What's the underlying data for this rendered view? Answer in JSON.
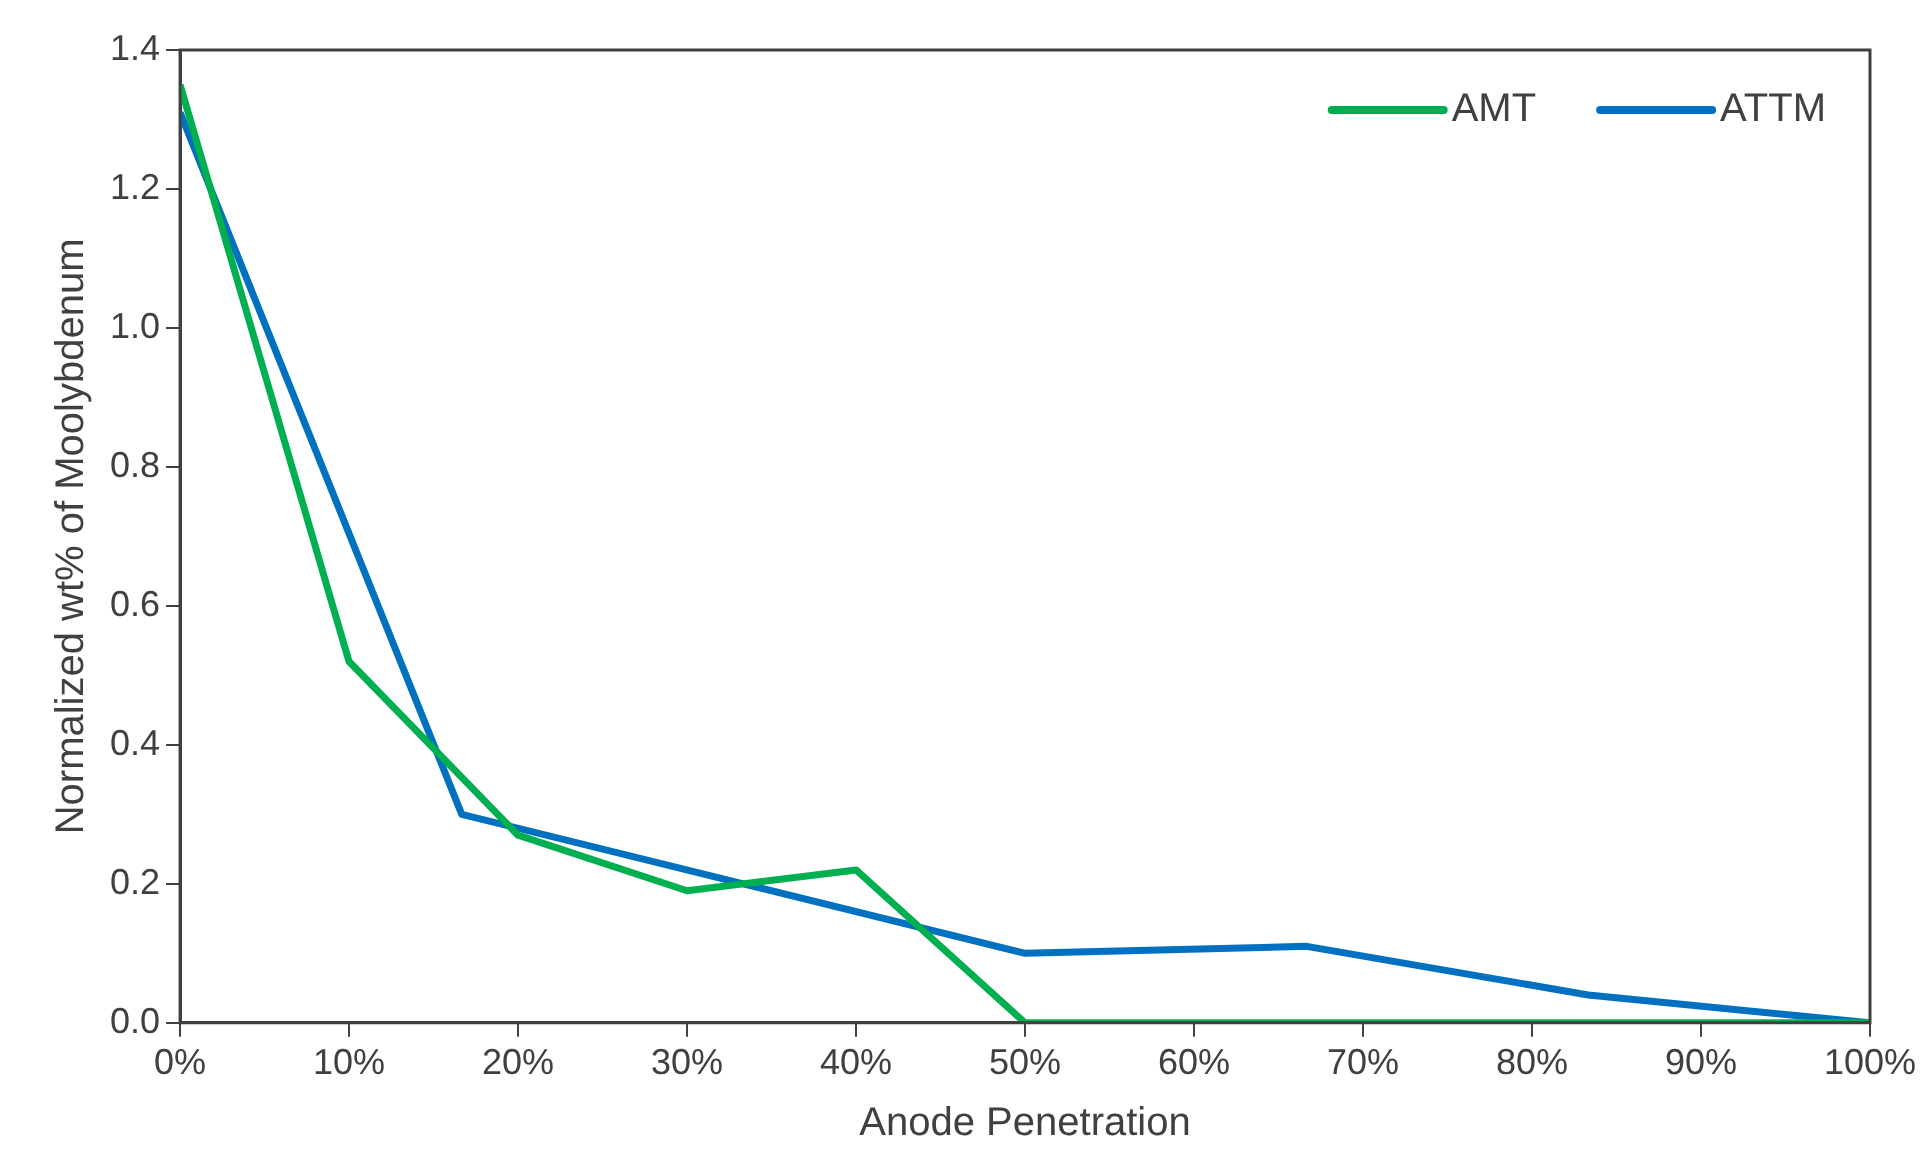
{
  "chart_data": {
    "type": "line",
    "xlabel": "Anode Penetration",
    "ylabel": "Normalized wt% of Moolybdenum",
    "series": [
      {
        "name": "AMT",
        "color": "#00b050",
        "x": [
          0,
          10,
          20,
          30,
          40,
          50,
          60,
          70,
          80,
          90,
          100
        ],
        "values": [
          1.35,
          0.52,
          0.27,
          0.19,
          0.22,
          0,
          0,
          0,
          0,
          0,
          0
        ]
      },
      {
        "name": "ATTM",
        "color": "#0070c0",
        "x": [
          0,
          16.67,
          33.33,
          50,
          66.67,
          83.33,
          100
        ],
        "values": [
          1.31,
          0.3,
          0.2,
          0.1,
          0.11,
          0.04,
          0
        ]
      }
    ],
    "xlim": [
      0,
      100
    ],
    "xticks": [
      {
        "value": 0,
        "label": "0%"
      },
      {
        "value": 10,
        "label": "10%"
      },
      {
        "value": 20,
        "label": "20%"
      },
      {
        "value": 30,
        "label": "30%"
      },
      {
        "value": 40,
        "label": "40%"
      },
      {
        "value": 50,
        "label": "50%"
      },
      {
        "value": 60,
        "label": "60%"
      },
      {
        "value": 70,
        "label": "70%"
      },
      {
        "value": 80,
        "label": "80%"
      },
      {
        "value": 90,
        "label": "90%"
      },
      {
        "value": 100,
        "label": "100%"
      }
    ],
    "ylim": [
      0,
      1.4
    ],
    "yticks": [
      {
        "value": 0,
        "label": "0.0"
      },
      {
        "value": 0.2,
        "label": "0.2"
      },
      {
        "value": 0.4,
        "label": "0.4"
      },
      {
        "value": 0.6,
        "label": "0.6"
      },
      {
        "value": 0.8,
        "label": "0.8"
      },
      {
        "value": 1.0,
        "label": "1.0"
      },
      {
        "value": 1.2,
        "label": "1.2"
      },
      {
        "value": 1.4,
        "label": "1.4"
      }
    ],
    "grid": false,
    "legend": "top right",
    "marker": "none",
    "line_style": "solid"
  }
}
